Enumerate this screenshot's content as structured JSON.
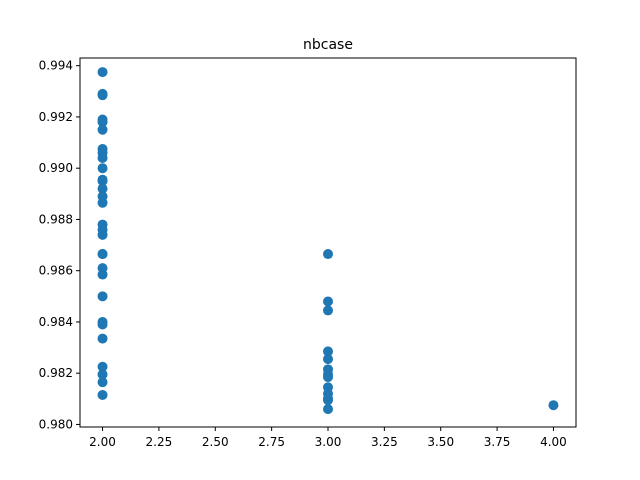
{
  "chart_data": {
    "type": "scatter",
    "title": "nbcase",
    "xlabel": "",
    "ylabel": "",
    "xlim": [
      1.9,
      4.1
    ],
    "ylim": [
      0.9799,
      0.9943
    ],
    "x_ticks": [
      "2.00",
      "2.25",
      "2.50",
      "2.75",
      "3.00",
      "3.25",
      "3.50",
      "3.75",
      "4.00"
    ],
    "y_ticks": [
      "0.980",
      "0.982",
      "0.984",
      "0.986",
      "0.988",
      "0.990",
      "0.992",
      "0.994"
    ],
    "grid": false,
    "color": "#1f77b4",
    "series": [
      {
        "points": [
          [
            2,
            0.99375
          ],
          [
            2,
            0.9929
          ],
          [
            2,
            0.99285
          ],
          [
            2,
            0.9919
          ],
          [
            2,
            0.9918
          ],
          [
            2,
            0.9915
          ],
          [
            2,
            0.99075
          ],
          [
            2,
            0.9906
          ],
          [
            2,
            0.9904
          ],
          [
            2,
            0.99
          ],
          [
            2,
            0.98955
          ],
          [
            2,
            0.9895
          ],
          [
            2,
            0.9892
          ],
          [
            2,
            0.9889
          ],
          [
            2,
            0.98865
          ],
          [
            2,
            0.9878
          ],
          [
            2,
            0.9876
          ],
          [
            2,
            0.9874
          ],
          [
            2,
            0.98665
          ],
          [
            2,
            0.98665
          ],
          [
            2,
            0.9861
          ],
          [
            2,
            0.98585
          ],
          [
            2,
            0.985
          ],
          [
            2,
            0.984
          ],
          [
            2,
            0.9839
          ],
          [
            2,
            0.98335
          ],
          [
            2,
            0.98225
          ],
          [
            2,
            0.98195
          ],
          [
            2,
            0.98165
          ],
          [
            2,
            0.98115
          ],
          [
            3,
            0.98665
          ],
          [
            3,
            0.9848
          ],
          [
            3,
            0.98445
          ],
          [
            3,
            0.98285
          ],
          [
            3,
            0.98255
          ],
          [
            3,
            0.98215
          ],
          [
            3,
            0.98195
          ],
          [
            3,
            0.98185
          ],
          [
            3,
            0.98145
          ],
          [
            3,
            0.9812
          ],
          [
            3,
            0.981
          ],
          [
            3,
            0.98095
          ],
          [
            3,
            0.9806
          ],
          [
            4,
            0.98075
          ]
        ]
      }
    ]
  }
}
